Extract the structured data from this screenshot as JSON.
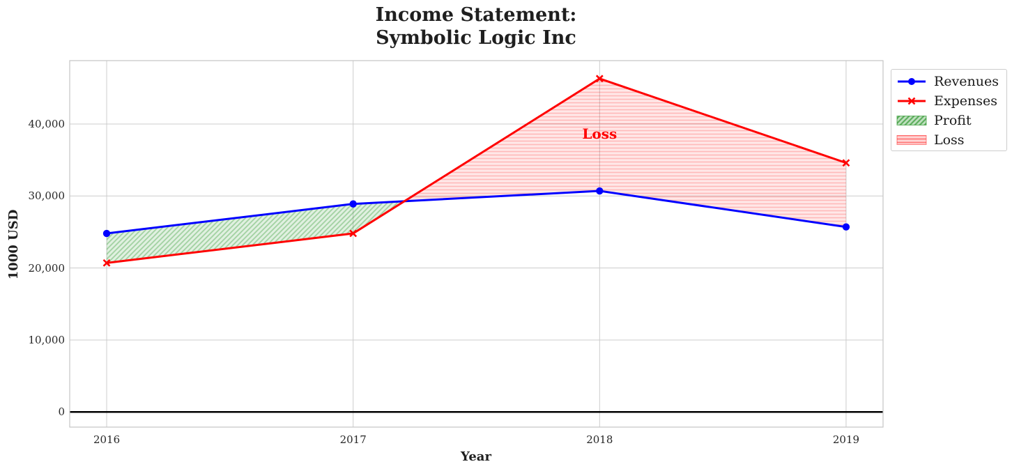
{
  "figure": {
    "title_line1": "Income Statement:",
    "title_line2": "Symbolic Logic Inc"
  },
  "chart_data": {
    "type": "line",
    "title": "Income Statement: Symbolic Logic Inc",
    "xlabel": "Year",
    "ylabel": "1000 USD",
    "x": [
      2016,
      2017,
      2018,
      2019
    ],
    "series": [
      {
        "name": "Revenues",
        "color": "#0000ff",
        "marker": "circle",
        "line_width": 3,
        "values": [
          24800,
          28900,
          30700,
          25700
        ]
      },
      {
        "name": "Expenses",
        "color": "#ff0000",
        "marker": "x",
        "line_width": 3,
        "values": [
          20700,
          24800,
          46300,
          34600
        ]
      }
    ],
    "fills": [
      {
        "name": "Profit",
        "color": "#008000",
        "hatch": "diagonal"
      },
      {
        "name": "Loss",
        "color": "#ff0000",
        "hatch": "horizontal"
      }
    ],
    "annotation": {
      "text": "Loss",
      "x": 2018,
      "y": 38600,
      "color": "#ff0000"
    },
    "baseline": {
      "y": 0,
      "color": "#000000"
    },
    "xticks": {
      "values": [
        2016,
        2017,
        2018,
        2019
      ],
      "labels": [
        "2016",
        "2017",
        "2018",
        "2019"
      ]
    },
    "yticks": {
      "values": [
        0,
        10000,
        20000,
        30000,
        40000
      ],
      "labels": [
        "0",
        "10,000",
        "20,000",
        "30,000",
        "40,000"
      ]
    },
    "xlim": [
      2015.85,
      2019.15
    ],
    "ylim": [
      -2100,
      48800
    ],
    "grid": true,
    "legend": {
      "position": "outside upper right",
      "entries": [
        "Revenues",
        "Expenses",
        "Profit",
        "Loss"
      ]
    },
    "colors": {
      "grid": "#cccccc",
      "border": "#c4c4c4",
      "tick_text": "#262626"
    }
  }
}
